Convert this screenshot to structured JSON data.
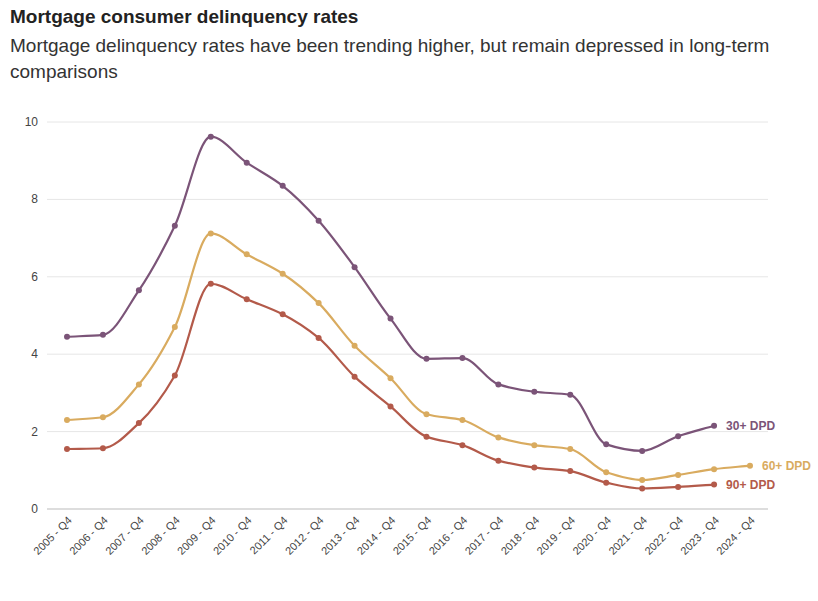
{
  "chart_data": {
    "type": "line",
    "title": "Mortgage consumer delinquency rates",
    "subtitle": "Mortgage delinquency rates have been trending higher, but remain depressed in long-term comparisons",
    "categories": [
      "2005 - Q4",
      "2006 - Q4",
      "2007 - Q4",
      "2008 - Q4",
      "2009 - Q4",
      "2010 - Q4",
      "2011 - Q4",
      "2012 - Q4",
      "2013 - Q4",
      "2014 - Q4",
      "2015 - Q4",
      "2016 - Q4",
      "2017 - Q4",
      "2018 - Q4",
      "2019 - Q4",
      "2020 - Q4",
      "2021 - Q4",
      "2022 - Q4",
      "2023 - Q4",
      "2024 - Q4"
    ],
    "series": [
      {
        "name": "30+ DPD",
        "color": "#7b5478",
        "values": [
          4.45,
          4.5,
          5.65,
          7.32,
          9.62,
          8.95,
          8.35,
          7.45,
          6.25,
          4.92,
          3.88,
          3.9,
          3.22,
          3.03,
          2.95,
          1.67,
          1.5,
          1.88,
          2.15,
          null
        ]
      },
      {
        "name": "60+ DPD",
        "color": "#d9ab5f",
        "values": [
          2.3,
          2.37,
          3.22,
          4.7,
          7.12,
          6.58,
          6.08,
          5.32,
          4.22,
          3.38,
          2.45,
          2.3,
          1.85,
          1.65,
          1.55,
          0.95,
          0.75,
          0.88,
          1.03,
          1.12
        ]
      },
      {
        "name": "90+ DPD",
        "color": "#b35a4a",
        "values": [
          1.55,
          1.57,
          2.22,
          3.45,
          5.82,
          5.42,
          5.03,
          4.42,
          3.42,
          2.65,
          1.87,
          1.65,
          1.25,
          1.07,
          0.98,
          0.68,
          0.53,
          0.57,
          0.63,
          null
        ]
      }
    ],
    "ylim": [
      0,
      10
    ],
    "yticks": [
      0,
      2,
      4,
      6,
      8,
      10
    ],
    "grid": true,
    "marker": "circle",
    "line_style": "solid"
  }
}
